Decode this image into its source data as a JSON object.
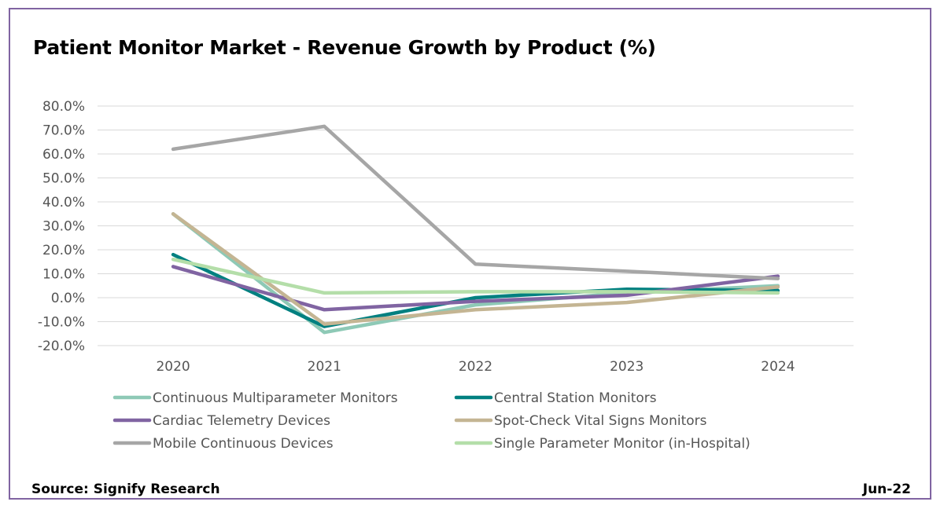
{
  "chart_data": {
    "type": "line",
    "title": "Patient Monitor Market - Revenue Growth by Product (%)",
    "xlabel": "",
    "ylabel": "",
    "x": [
      "2020",
      "2021",
      "2022",
      "2023",
      "2024"
    ],
    "ylim": [
      -20,
      80
    ],
    "yticks": [
      "80.0%",
      "70.0%",
      "60.0%",
      "50.0%",
      "40.0%",
      "30.0%",
      "20.0%",
      "10.0%",
      "0.0%",
      "-10.0%",
      "-20.0%"
    ],
    "ytick_values": [
      80,
      70,
      60,
      50,
      40,
      30,
      20,
      10,
      0,
      -10,
      -20
    ],
    "grid": true,
    "legend_position": "bottom",
    "series": [
      {
        "name": "Continuous Multiparameter Monitors",
        "color": "#8ec9b6",
        "values": [
          35,
          -14.5,
          -3,
          2,
          5
        ]
      },
      {
        "name": "Central Station Monitors",
        "color": "#008080",
        "values": [
          18,
          -12,
          0,
          3.5,
          3
        ]
      },
      {
        "name": "Cardiac Telemetry Devices",
        "color": "#8064a2",
        "values": [
          13,
          -5,
          -1.5,
          1,
          9
        ]
      },
      {
        "name": "Spot-Check Vital Signs Monitors",
        "color": "#c4b593",
        "values": [
          35,
          -11,
          -5,
          -2,
          4.5
        ]
      },
      {
        "name": "Mobile Continuous Devices",
        "color": "#a6a6a6",
        "values": [
          62,
          71.5,
          14,
          11,
          8
        ]
      },
      {
        "name": "Single Parameter Monitor (in-Hospital)",
        "color": "#b4dea9",
        "values": [
          16,
          2,
          2.5,
          2.5,
          2
        ]
      }
    ]
  },
  "footer": {
    "source": "Source: Signify Research",
    "date": "Jun-22"
  }
}
